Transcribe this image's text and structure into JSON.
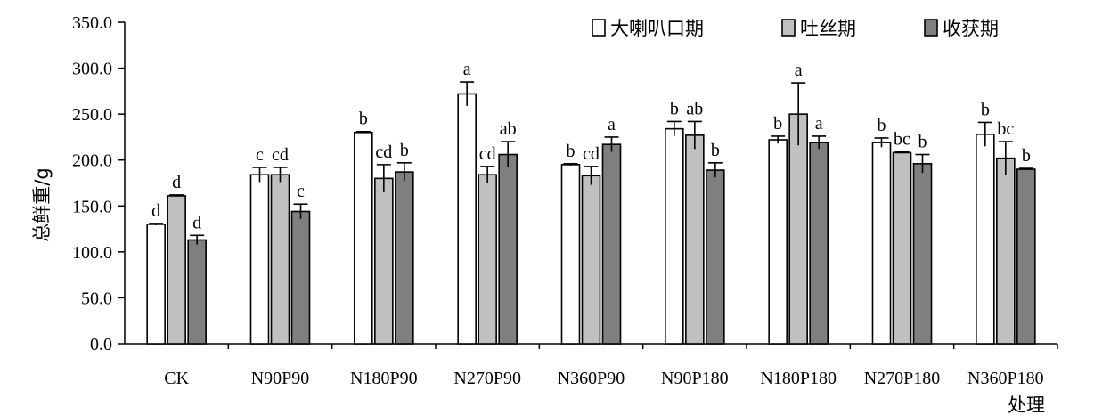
{
  "chart_data": {
    "type": "bar",
    "title": "",
    "xlabel": "处理",
    "ylabel": "总鲜重/g",
    "ylim": [
      0,
      350
    ],
    "yticks": [
      "0.0",
      "50.0",
      "100.0",
      "150.0",
      "200.0",
      "250.0",
      "300.0",
      "350.0"
    ],
    "grid": false,
    "legend_position": "top-right",
    "categories": [
      "CK",
      "N90P90",
      "N180P90",
      "N270P90",
      "N360P90",
      "N90P180",
      "N180P180",
      "N270P180",
      "N360P180"
    ],
    "series": [
      {
        "name": "大喇叭口期",
        "color": "#ffffff",
        "values": [
          130,
          184,
          230,
          272,
          195,
          234,
          222,
          219,
          228
        ],
        "errors": [
          1,
          8,
          1,
          13,
          1,
          8,
          4,
          5,
          13
        ],
        "labels": [
          "d",
          "c",
          "b",
          "a",
          "b",
          "b",
          "b",
          "b",
          "b"
        ]
      },
      {
        "name": "吐丝期",
        "color": "#c0c0c0",
        "values": [
          161,
          184,
          180,
          184,
          183,
          227,
          250,
          208,
          202
        ],
        "errors": [
          1,
          8,
          15,
          9,
          10,
          15,
          34,
          1,
          18
        ],
        "labels": [
          "d",
          "cd",
          "cd",
          "cd",
          "cd",
          "ab",
          "a",
          "bc",
          "bc"
        ]
      },
      {
        "name": "收获期",
        "color": "#7f7f7f",
        "values": [
          113,
          144,
          187,
          206,
          217,
          189,
          219,
          196,
          190
        ],
        "errors": [
          5,
          8,
          10,
          14,
          8,
          8,
          7,
          10,
          1
        ],
        "labels": [
          "d",
          "c",
          "b",
          "ab",
          "a",
          "b",
          "a",
          "b",
          "b"
        ]
      }
    ]
  }
}
